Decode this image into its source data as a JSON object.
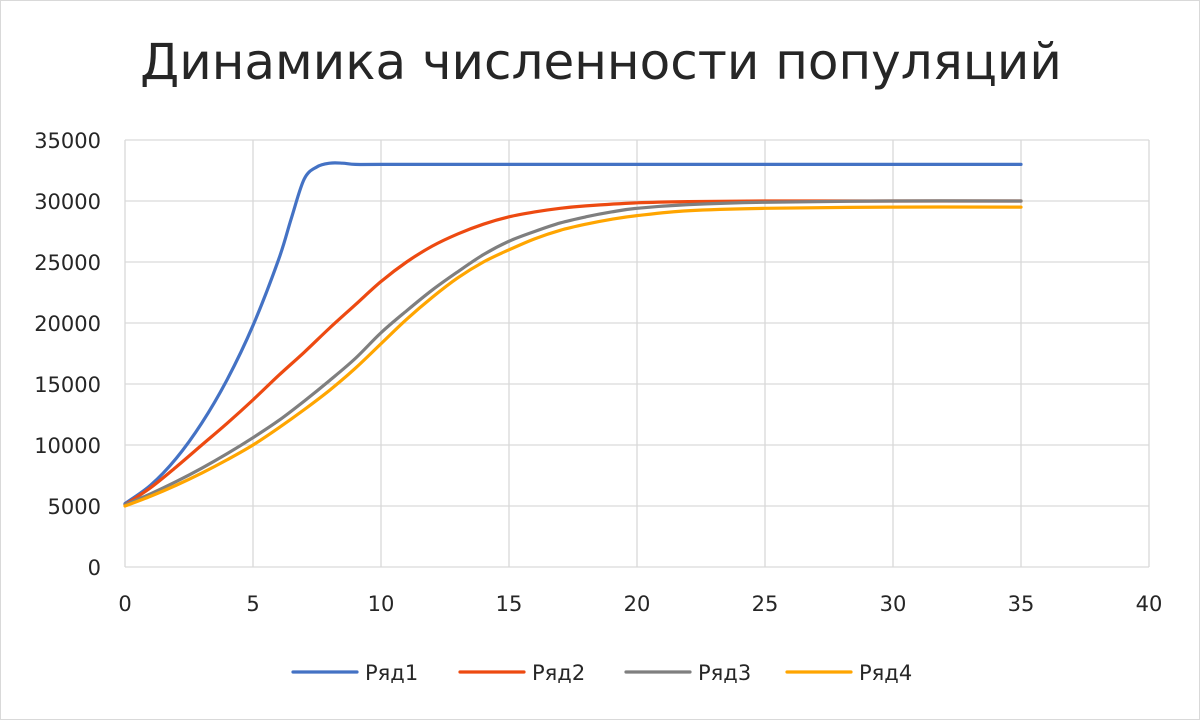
{
  "chart_data": {
    "type": "line",
    "title": "Динамика численности популяций",
    "xlabel": "",
    "ylabel": "",
    "xlim": [
      0,
      40
    ],
    "ylim": [
      0,
      35000
    ],
    "x_ticks": [
      0,
      5,
      10,
      15,
      20,
      25,
      30,
      35,
      40
    ],
    "y_ticks": [
      0,
      5000,
      10000,
      15000,
      20000,
      25000,
      30000,
      35000
    ],
    "grid": true,
    "legend_position": "bottom",
    "series": [
      {
        "name": "Ряд1",
        "color": "#4472c4",
        "x": [
          0,
          1,
          2,
          3,
          4,
          5,
          6,
          6.5,
          7,
          7.5,
          8,
          8.5,
          9,
          10,
          15,
          20,
          25,
          30,
          35
        ],
        "y": [
          5200,
          6700,
          8900,
          11800,
          15400,
          19800,
          25200,
          28600,
          31800,
          32800,
          33100,
          33100,
          33000,
          33000,
          33000,
          33000,
          33000,
          33000,
          33000
        ]
      },
      {
        "name": "Ряд2",
        "color": "#ed4a11",
        "x": [
          0,
          1,
          2,
          3,
          4,
          5,
          6,
          7,
          8,
          9,
          10,
          11,
          12,
          13,
          14,
          15,
          16,
          17,
          18,
          20,
          22,
          25,
          30,
          35
        ],
        "y": [
          5100,
          6500,
          8200,
          10000,
          11800,
          13700,
          15700,
          17600,
          19600,
          21500,
          23400,
          25000,
          26300,
          27300,
          28100,
          28700,
          29100,
          29400,
          29600,
          29850,
          29950,
          30000,
          30000,
          30000
        ]
      },
      {
        "name": "Ряд3",
        "color": "#7f7f7f",
        "x": [
          0,
          1,
          2,
          3,
          4,
          5,
          6,
          7,
          8,
          9,
          10,
          11,
          12,
          13,
          14,
          15,
          16,
          17,
          18,
          19,
          20,
          22,
          25,
          30,
          35
        ],
        "y": [
          5100,
          6000,
          7000,
          8100,
          9300,
          10600,
          12000,
          13600,
          15300,
          17100,
          19200,
          21000,
          22700,
          24200,
          25600,
          26700,
          27500,
          28200,
          28700,
          29100,
          29400,
          29700,
          29900,
          30000,
          30000
        ]
      },
      {
        "name": "Ряд4",
        "color": "#ffa500",
        "x": [
          0,
          1,
          2,
          3,
          4,
          5,
          6,
          7,
          8,
          9,
          10,
          11,
          12,
          13,
          14,
          15,
          16,
          17,
          18,
          19,
          20,
          22,
          25,
          30,
          35
        ],
        "y": [
          5000,
          5800,
          6700,
          7700,
          8800,
          10000,
          11400,
          12900,
          14500,
          16300,
          18300,
          20300,
          22100,
          23700,
          25000,
          26000,
          26900,
          27600,
          28100,
          28500,
          28800,
          29200,
          29400,
          29500,
          29500
        ]
      }
    ]
  }
}
